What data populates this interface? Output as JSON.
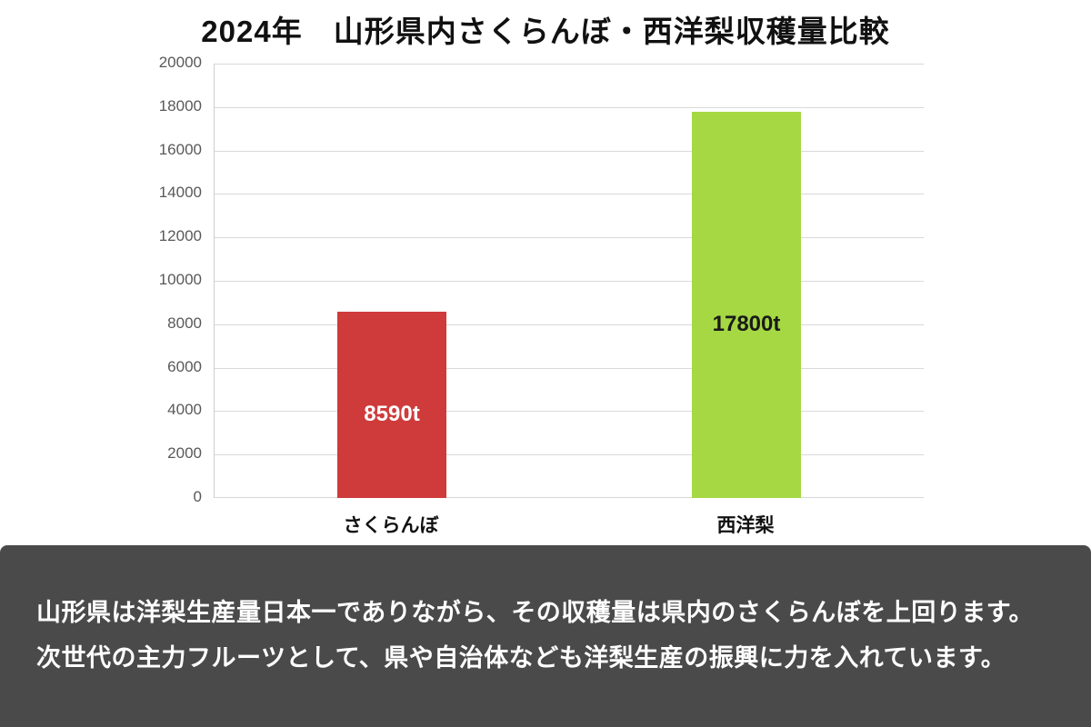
{
  "title": "2024年　山形県内さくらんぼ・西洋梨収穫量比較",
  "chart_data": {
    "type": "bar",
    "title": "2024年　山形県内さくらんぼ・西洋梨収穫量比較",
    "categories": [
      "さくらんぼ",
      "西洋梨"
    ],
    "values": [
      8590,
      17800
    ],
    "data_labels": [
      "8590t",
      "17800t"
    ],
    "bar_colors": [
      "#cf3b3b",
      "#a5d843"
    ],
    "data_label_colors": [
      "#ffffff",
      "#1a1a1a"
    ],
    "xlabel": "",
    "ylabel": "",
    "ylim": [
      0,
      20000
    ],
    "ytick_step": 2000,
    "grid": true,
    "legend": "none"
  },
  "footer": {
    "line1": "山形県は洋梨生産量日本一でありながら、その収穫量は県内のさくらんぼを上回ります。",
    "line2": "次世代の主力フルーツとして、県や自治体なども洋梨生産の振興に力を入れています。",
    "background": "#4a4a4a",
    "text_color": "#ffffff"
  }
}
